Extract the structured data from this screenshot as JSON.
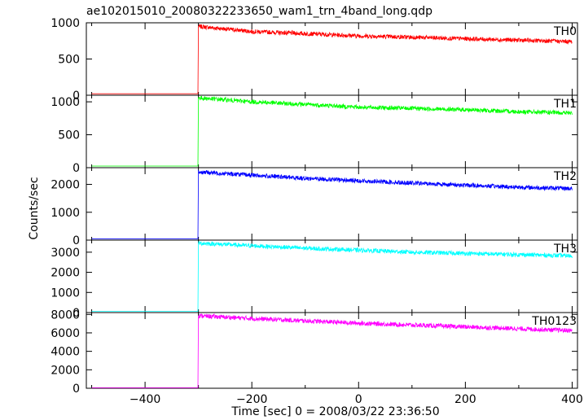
{
  "chart_data": {
    "type": "line",
    "title": "ae102015010_20080322233650_wam1_trn_4band_long.qdp",
    "xlabel": "Time [sec] 0 = 2008/03/22 23:36:50",
    "ylabel": "Counts/sec",
    "xlim": [
      -510,
      410
    ],
    "xticks": [
      -400,
      -200,
      0,
      200,
      400
    ],
    "grid": false,
    "series": [
      {
        "name": "TH0",
        "color": "#ff0000",
        "ylim": [
          0,
          1000
        ],
        "yticks": [
          0,
          500,
          1000
        ],
        "x": [
          -500,
          -301,
          -300,
          -200,
          -100,
          0,
          100,
          200,
          300,
          400
        ],
        "values": [
          20,
          20,
          950,
          880,
          850,
          820,
          800,
          780,
          760,
          740
        ]
      },
      {
        "name": "TH1",
        "color": "#00ff00",
        "ylim": [
          0,
          1100
        ],
        "yticks": [
          0,
          500,
          1000
        ],
        "x": [
          -500,
          -301,
          -300,
          -200,
          -100,
          0,
          100,
          200,
          300,
          400
        ],
        "values": [
          25,
          25,
          1060,
          1000,
          960,
          920,
          900,
          880,
          850,
          830
        ]
      },
      {
        "name": "TH2",
        "color": "#0000ff",
        "ylim": [
          0,
          2600
        ],
        "yticks": [
          0,
          1000,
          2000
        ],
        "x": [
          -500,
          -301,
          -300,
          -200,
          -100,
          0,
          100,
          200,
          300,
          400
        ],
        "values": [
          50,
          50,
          2450,
          2330,
          2220,
          2130,
          2050,
          1970,
          1900,
          1850
        ]
      },
      {
        "name": "TH3",
        "color": "#00ffff",
        "ylim": [
          0,
          3600
        ],
        "yticks": [
          0,
          1000,
          2000,
          3000
        ],
        "x": [
          -500,
          -301,
          -300,
          -200,
          -100,
          0,
          100,
          200,
          300,
          400
        ],
        "values": [
          60,
          60,
          3450,
          3320,
          3200,
          3100,
          3000,
          2940,
          2880,
          2820
        ]
      },
      {
        "name": "TH0123",
        "color": "#ff00ff",
        "ylim": [
          0,
          8200
        ],
        "yticks": [
          0,
          2000,
          4000,
          6000,
          8000
        ],
        "x": [
          -500,
          -301,
          -300,
          -200,
          -100,
          0,
          100,
          200,
          300,
          400
        ],
        "values": [
          50,
          50,
          7850,
          7550,
          7300,
          7050,
          6850,
          6650,
          6450,
          6250
        ]
      }
    ]
  }
}
